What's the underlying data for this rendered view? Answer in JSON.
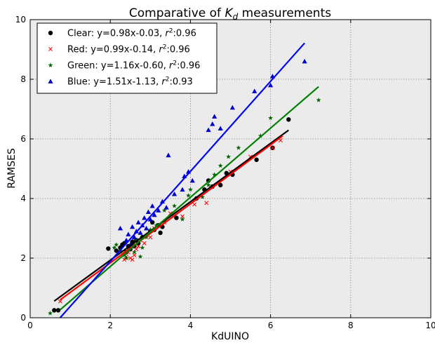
{
  "chart_data": {
    "type": "scatter",
    "title": "Comparative of K_d measurements",
    "title_parts": {
      "prefix": "Comparative of ",
      "symbol": "K",
      "subscript": "d",
      "suffix": " measurements"
    },
    "xlabel": "KdUINO",
    "ylabel": "RAMSES",
    "xlim": [
      0,
      10
    ],
    "ylim": [
      0,
      10
    ],
    "xticks": [
      "0",
      "2",
      "4",
      "6",
      "8",
      "10"
    ],
    "yticks": [
      "0",
      "2",
      "4",
      "6",
      "8",
      "10"
    ],
    "grid": true,
    "legend_position": "top-left",
    "series": [
      {
        "name": "Clear: y=0.98x-0.03, r²:0.96",
        "legend": {
          "text": "Clear: y=0.98x-0.03, ",
          "r_symbol": "r",
          "r_exp": "2",
          "r_value": ":0.96"
        },
        "marker": "circle",
        "color": "#000000",
        "fit": {
          "slope": 0.98,
          "intercept": -0.03,
          "x_range": [
            0.6,
            6.45
          ]
        },
        "points": [
          [
            0.6,
            0.25
          ],
          [
            0.7,
            0.25
          ],
          [
            1.95,
            2.32
          ],
          [
            2.15,
            2.25
          ],
          [
            2.25,
            2.35
          ],
          [
            2.3,
            2.45
          ],
          [
            2.35,
            2.5
          ],
          [
            2.4,
            2.2
          ],
          [
            2.45,
            2.4
          ],
          [
            2.5,
            2.3
          ],
          [
            2.55,
            2.55
          ],
          [
            2.6,
            2.4
          ],
          [
            2.65,
            2.6
          ],
          [
            2.7,
            2.5
          ],
          [
            2.8,
            2.7
          ],
          [
            3.0,
            2.9
          ],
          [
            3.05,
            3.2
          ],
          [
            3.1,
            2.95
          ],
          [
            3.2,
            3.1
          ],
          [
            3.25,
            2.85
          ],
          [
            3.3,
            3.05
          ],
          [
            3.65,
            3.35
          ],
          [
            4.15,
            4.0
          ],
          [
            4.35,
            4.3
          ],
          [
            4.45,
            4.6
          ],
          [
            4.55,
            4.4
          ],
          [
            4.75,
            4.45
          ],
          [
            4.9,
            4.85
          ],
          [
            5.05,
            4.8
          ],
          [
            5.65,
            5.3
          ],
          [
            6.05,
            5.7
          ],
          [
            6.45,
            6.65
          ]
        ]
      },
      {
        "name": "Red: y=0.99x-0.14, r²:0.96",
        "legend": {
          "text": "Red: y=0.99x-0.14, ",
          "r_symbol": "r",
          "r_exp": "2",
          "r_value": ":0.96"
        },
        "marker": "x",
        "color": "#ff0000",
        "fit": {
          "slope": 0.99,
          "intercept": -0.14,
          "x_range": [
            0.75,
            6.3
          ]
        },
        "points": [
          [
            0.75,
            0.55
          ],
          [
            2.3,
            2.15
          ],
          [
            2.35,
            1.95
          ],
          [
            2.4,
            2.05
          ],
          [
            2.45,
            2.2
          ],
          [
            2.5,
            2.0
          ],
          [
            2.55,
            1.95
          ],
          [
            2.6,
            2.1
          ],
          [
            2.65,
            2.3
          ],
          [
            2.7,
            2.4
          ],
          [
            2.75,
            2.6
          ],
          [
            2.85,
            2.5
          ],
          [
            3.0,
            2.7
          ],
          [
            3.1,
            3.0
          ],
          [
            3.35,
            3.2
          ],
          [
            3.5,
            3.5
          ],
          [
            3.8,
            3.4
          ],
          [
            4.1,
            3.8
          ],
          [
            4.4,
            3.85
          ],
          [
            5.0,
            4.9
          ],
          [
            5.5,
            5.4
          ],
          [
            6.05,
            5.7
          ],
          [
            6.25,
            5.95
          ]
        ]
      },
      {
        "name": "Green: y=1.16x-0.60, r²:0.96",
        "legend": {
          "text": "Green: y=1.16x-0.60, ",
          "r_symbol": "r",
          "r_exp": "2",
          "r_value": ":0.96"
        },
        "marker": "star",
        "color": "#006400",
        "fit": {
          "slope": 1.16,
          "intercept": -0.6,
          "x_range": [
            0.75,
            7.2
          ]
        },
        "points": [
          [
            0.5,
            0.15
          ],
          [
            2.1,
            2.35
          ],
          [
            2.15,
            2.45
          ],
          [
            2.25,
            2.25
          ],
          [
            2.35,
            2.1
          ],
          [
            2.4,
            2.0
          ],
          [
            2.45,
            2.3
          ],
          [
            2.55,
            2.45
          ],
          [
            2.6,
            2.2
          ],
          [
            2.65,
            2.6
          ],
          [
            2.75,
            2.05
          ],
          [
            2.8,
            2.35
          ],
          [
            2.9,
            2.7
          ],
          [
            3.0,
            2.95
          ],
          [
            3.15,
            3.1
          ],
          [
            3.35,
            3.6
          ],
          [
            3.6,
            3.75
          ],
          [
            3.8,
            3.3
          ],
          [
            3.95,
            4.1
          ],
          [
            4.0,
            4.3
          ],
          [
            4.3,
            4.05
          ],
          [
            4.45,
            4.45
          ],
          [
            4.6,
            4.8
          ],
          [
            4.75,
            5.1
          ],
          [
            4.95,
            5.4
          ],
          [
            5.2,
            5.7
          ],
          [
            5.75,
            6.1
          ],
          [
            6.0,
            6.7
          ],
          [
            7.2,
            7.3
          ]
        ]
      },
      {
        "name": "Blue: y=1.51x-1.13, r²:0.93",
        "legend": {
          "text": "Blue: y=1.51x-1.13, ",
          "r_symbol": "r",
          "r_exp": "2",
          "r_value": ":0.93"
        },
        "marker": "triangle",
        "color": "#0000cc",
        "fit": {
          "slope": 1.51,
          "intercept": -1.13,
          "x_range": [
            0.75,
            6.85
          ]
        },
        "points": [
          [
            2.25,
            3.0
          ],
          [
            2.4,
            2.6
          ],
          [
            2.45,
            2.8
          ],
          [
            2.5,
            2.45
          ],
          [
            2.55,
            3.05
          ],
          [
            2.6,
            2.7
          ],
          [
            2.65,
            2.9
          ],
          [
            2.7,
            3.2
          ],
          [
            2.75,
            2.85
          ],
          [
            2.8,
            3.1
          ],
          [
            2.85,
            3.35
          ],
          [
            2.9,
            3.0
          ],
          [
            2.95,
            3.55
          ],
          [
            3.0,
            3.3
          ],
          [
            3.05,
            3.75
          ],
          [
            3.1,
            3.45
          ],
          [
            3.2,
            3.6
          ],
          [
            3.3,
            3.9
          ],
          [
            3.4,
            3.7
          ],
          [
            3.45,
            5.45
          ],
          [
            3.6,
            4.15
          ],
          [
            3.8,
            4.3
          ],
          [
            3.85,
            4.75
          ],
          [
            3.95,
            4.9
          ],
          [
            4.05,
            4.6
          ],
          [
            4.45,
            6.3
          ],
          [
            4.55,
            6.5
          ],
          [
            4.6,
            6.75
          ],
          [
            4.75,
            6.35
          ],
          [
            5.05,
            7.05
          ],
          [
            5.6,
            7.6
          ],
          [
            6.05,
            8.1
          ],
          [
            6.85,
            8.6
          ],
          [
            6.0,
            7.8
          ]
        ]
      }
    ]
  }
}
